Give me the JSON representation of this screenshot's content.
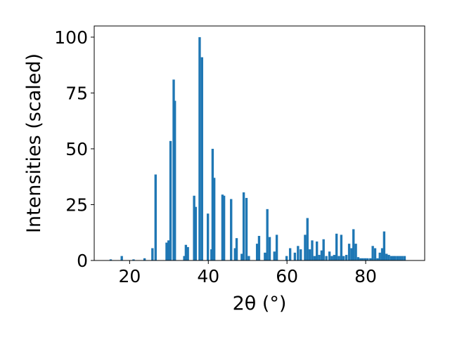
{
  "chart_data": {
    "type": "bar",
    "title": "",
    "xlabel": "2θ (°)",
    "ylabel": "Intensities (scaled)",
    "xlim": [
      11,
      95
    ],
    "ylim": [
      0,
      105
    ],
    "xticks": [
      20,
      40,
      60,
      80
    ],
    "yticks": [
      0,
      25,
      50,
      75,
      100
    ],
    "bar_color": "#1f77b4",
    "bar_width": 0.6,
    "grid": false,
    "x": [
      15.2,
      18.0,
      21.0,
      23.8,
      25.8,
      26.6,
      29.4,
      29.9,
      30.4,
      31.2,
      31.5,
      33.9,
      34.3,
      34.8,
      36.4,
      36.8,
      37.8,
      38.4,
      39.9,
      40.8,
      41.1,
      41.5,
      43.6,
      44.0,
      45.8,
      46.8,
      47.2,
      48.5,
      49.0,
      49.7,
      50.3,
      52.4,
      52.9,
      54.4,
      55.0,
      55.6,
      56.8,
      57.4,
      59.9,
      60.8,
      62.0,
      62.8,
      63.5,
      64.6,
      65.2,
      65.8,
      66.4,
      67.0,
      67.6,
      68.2,
      68.8,
      69.3,
      70.0,
      70.8,
      71.4,
      72.0,
      72.6,
      73.2,
      73.8,
      74.4,
      75.1,
      75.8,
      76.4,
      76.9,
      77.5,
      78.1,
      78.7,
      79.3,
      79.9,
      80.5,
      81.2,
      81.8,
      82.4,
      83.0,
      83.6,
      84.2,
      84.7,
      85.3,
      85.9,
      86.5,
      87.0,
      87.5,
      88.1,
      88.7,
      89.3,
      89.9
    ],
    "values": [
      0.5,
      2,
      0.5,
      1,
      5.5,
      38.5,
      8,
      9,
      53.5,
      81,
      71.5,
      2,
      7,
      6,
      29,
      24,
      100,
      91,
      21,
      5,
      50,
      37,
      29.5,
      29,
      27.5,
      5.5,
      10,
      3,
      30.5,
      28,
      2,
      7.5,
      11,
      3.5,
      23,
      10.5,
      4,
      11.5,
      2,
      5.5,
      3.5,
      6.5,
      5,
      11.5,
      19,
      5,
      9,
      2,
      8.5,
      2.5,
      4.5,
      9.5,
      2,
      4,
      2,
      2.5,
      12,
      2,
      11.5,
      2,
      2.5,
      7.5,
      5.5,
      14,
      7.5,
      1.5,
      1,
      1,
      1,
      1,
      1,
      6.5,
      5.5,
      1,
      3.5,
      5.5,
      13,
      3,
      2.5,
      2,
      2,
      2,
      2,
      2,
      2,
      2
    ]
  }
}
